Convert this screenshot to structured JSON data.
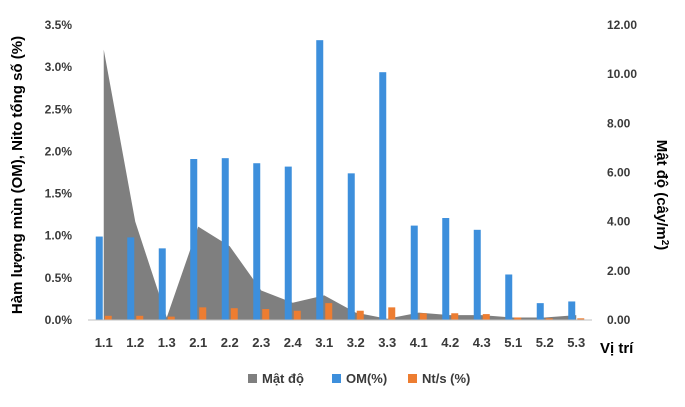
{
  "chart_data": {
    "type": "bar",
    "categories": [
      "1.1",
      "1.2",
      "1.3",
      "2.1",
      "2.2",
      "2.3",
      "2.4",
      "3.1",
      "3.2",
      "3.3",
      "4.1",
      "4.2",
      "4.3",
      "5.1",
      "5.2",
      "5.3"
    ],
    "series": [
      {
        "name": "Mật độ",
        "type": "area",
        "axis": "right",
        "color": "#7f7f7f",
        "values": [
          11.0,
          4.0,
          0.1,
          3.8,
          3.0,
          1.2,
          0.7,
          1.0,
          0.3,
          0.05,
          0.3,
          0.2,
          0.2,
          0.1,
          0.1,
          0.2
        ]
      },
      {
        "name": "OM(%)",
        "type": "bar",
        "axis": "left",
        "color": "#3d8fdc",
        "values": [
          0.99,
          0.98,
          0.85,
          1.91,
          1.92,
          1.86,
          1.82,
          3.32,
          1.74,
          2.94,
          1.12,
          1.21,
          1.07,
          0.54,
          0.2,
          0.22
        ]
      },
      {
        "name": "Nt/s (%)",
        "type": "bar",
        "axis": "left",
        "color": "#ed7d31",
        "values": [
          0.05,
          0.05,
          0.04,
          0.15,
          0.14,
          0.13,
          0.11,
          0.2,
          0.11,
          0.15,
          0.08,
          0.08,
          0.07,
          0.03,
          0.02,
          0.02
        ]
      }
    ],
    "ylabel": "Hàm lượng mùn (OM), Nito tổng số (%)",
    "y2label": "Mật độ (cây/m²)",
    "xlabel": "Vị trí",
    "y_ticks": [
      "0.0%",
      "0.5%",
      "1.0%",
      "1.5%",
      "2.0%",
      "2.5%",
      "3.0%",
      "3.5%"
    ],
    "y2_ticks": [
      "0.00",
      "2.00",
      "4.00",
      "6.00",
      "8.00",
      "10.00",
      "12.00"
    ],
    "ylim": [
      0,
      3.5
    ],
    "y2lim": [
      0,
      12
    ],
    "grid": false,
    "legend_position": "bottom"
  }
}
